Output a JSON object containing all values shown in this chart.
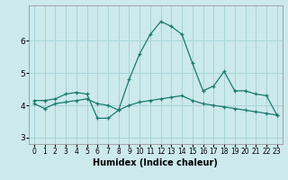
{
  "title": "",
  "xlabel": "Humidex (Indice chaleur)",
  "ylabel": "",
  "xlim": [
    -0.5,
    23.5
  ],
  "ylim": [
    2.8,
    7.1
  ],
  "yticks": [
    3,
    4,
    5,
    6
  ],
  "xticks": [
    0,
    1,
    2,
    3,
    4,
    5,
    6,
    7,
    8,
    9,
    10,
    11,
    12,
    13,
    14,
    15,
    16,
    17,
    18,
    19,
    20,
    21,
    22,
    23
  ],
  "bg_color": "#cce9ec",
  "grid_color": "#a8d4d8",
  "line_color": "#1a7a6e",
  "line1_x": [
    0,
    1,
    2,
    3,
    4,
    5,
    6,
    7,
    8,
    9,
    10,
    11,
    12,
    13,
    14,
    15,
    16,
    17,
    18,
    19,
    20,
    21,
    22,
    23
  ],
  "line1_y": [
    4.15,
    4.15,
    4.2,
    4.35,
    4.4,
    4.35,
    3.6,
    3.6,
    3.85,
    4.8,
    5.6,
    6.2,
    6.6,
    6.45,
    6.2,
    5.3,
    4.45,
    4.6,
    5.05,
    4.45,
    4.45,
    4.35,
    4.3,
    3.7
  ],
  "line2_x": [
    0,
    1,
    2,
    3,
    4,
    5,
    6,
    7,
    8,
    9,
    10,
    11,
    12,
    13,
    14,
    15,
    16,
    17,
    18,
    19,
    20,
    21,
    22,
    23
  ],
  "line2_y": [
    4.05,
    3.9,
    4.05,
    4.1,
    4.15,
    4.2,
    4.05,
    4.0,
    3.85,
    4.0,
    4.1,
    4.15,
    4.2,
    4.25,
    4.3,
    4.15,
    4.05,
    4.0,
    3.95,
    3.9,
    3.85,
    3.8,
    3.75,
    3.7
  ],
  "marker": "+"
}
